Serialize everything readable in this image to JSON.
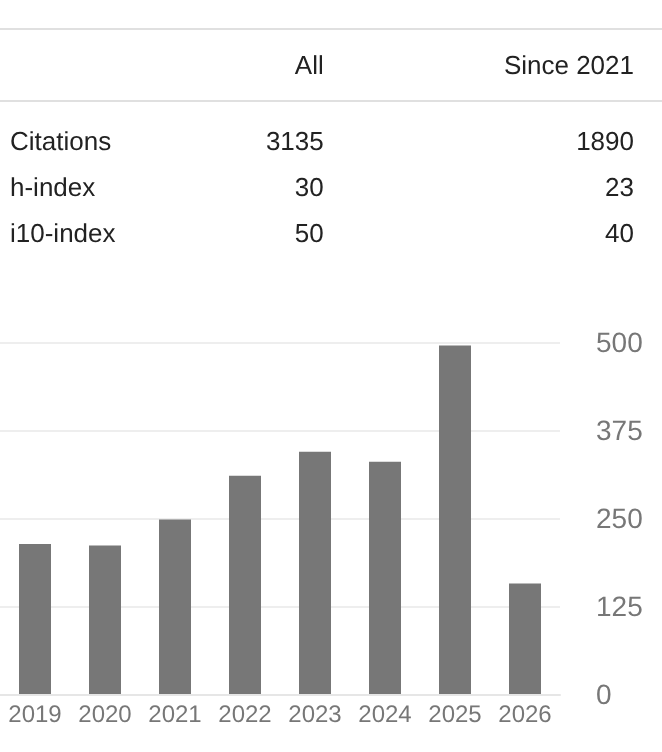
{
  "chart_data": [
    {
      "type": "other",
      "categories": [
        "All",
        "Since 2021"
      ],
      "y_categories": [
        "Citations",
        "h-index",
        "i10-index"
      ],
      "annotations": [
        "3135",
        "1890",
        "30",
        "23",
        "50",
        "40"
      ]
    },
    {
      "type": "bar",
      "categories": [
        "2019",
        "2020",
        "2021",
        "2022",
        "2023",
        "2024",
        "2025",
        "2026"
      ],
      "values": [
        213,
        211,
        248,
        310,
        344,
        330,
        495,
        157
      ],
      "color": "#777777",
      "ylim": [
        0,
        500
      ],
      "yticks": [
        0,
        125,
        250,
        375,
        500
      ],
      "grid": "y"
    }
  ]
}
